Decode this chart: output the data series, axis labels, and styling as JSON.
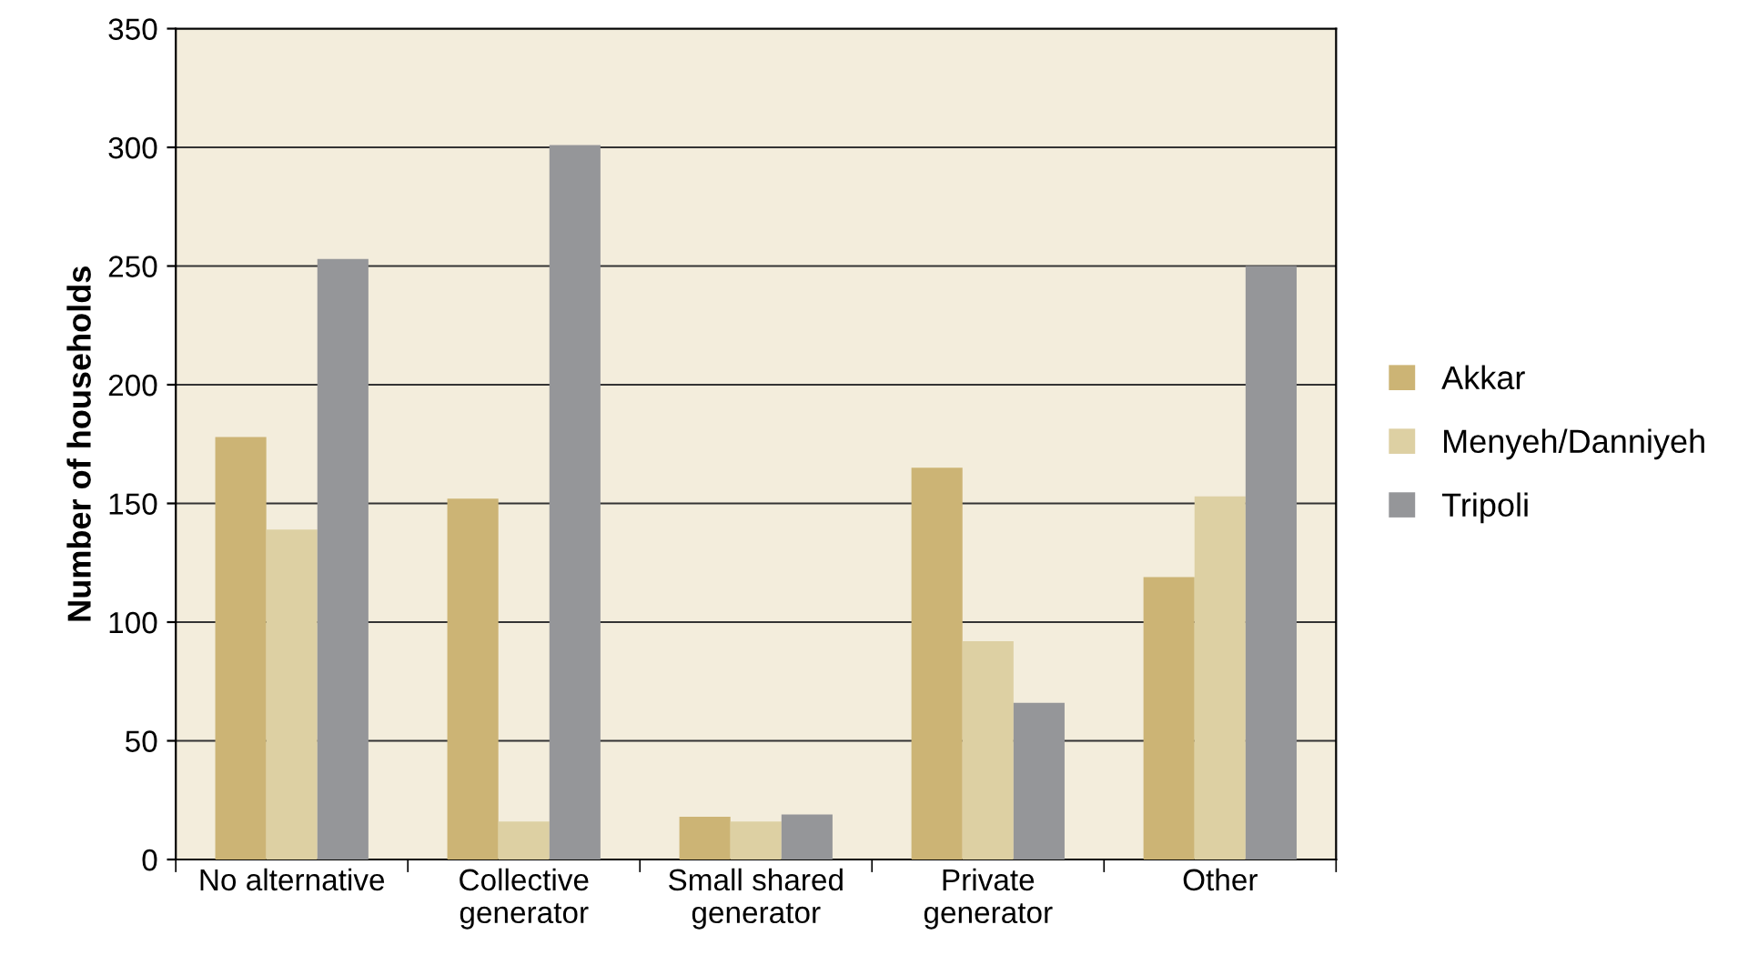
{
  "chart_data": {
    "type": "bar",
    "ylabel": "Number of households",
    "categories": [
      "No alternative",
      "Collective\ngenerator",
      "Small shared\ngenerator",
      "Private\ngenerator",
      "Other"
    ],
    "series": [
      {
        "name": "Akkar",
        "color": "#ccb475",
        "values": [
          178,
          152,
          18,
          165,
          119
        ]
      },
      {
        "name": "Menyeh/Danniyeh",
        "color": "#ddd0a3",
        "values": [
          139,
          16,
          16,
          92,
          153
        ]
      },
      {
        "name": "Tripoli",
        "color": "#959699",
        "values": [
          253,
          301,
          19,
          66,
          250
        ]
      }
    ],
    "ylim": [
      0,
      350
    ],
    "yticks": [
      0,
      50,
      100,
      150,
      200,
      250,
      300,
      350
    ],
    "grid": "y",
    "legend": "right"
  }
}
